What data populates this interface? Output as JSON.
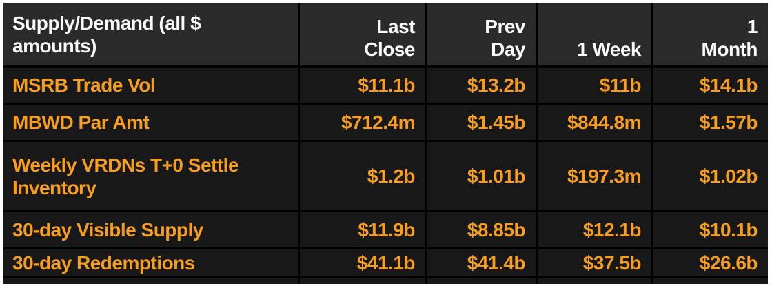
{
  "chart_data": {
    "type": "table",
    "title": "Supply/Demand (all $ amounts)",
    "header": {
      "label": "Supply/Demand (all $\namounts)",
      "columns": [
        "Last\nClose",
        "Prev\nDay",
        "1 Week",
        "1\nMonth"
      ]
    },
    "column_names": [
      "Last Close",
      "Prev Day",
      "1 Week",
      "1 Month"
    ],
    "rows": [
      {
        "label": "MSRB Trade Vol",
        "values": [
          "$11.1b",
          "$13.2b",
          "$11b",
          "$14.1b"
        ]
      },
      {
        "label": "MBWD Par Amt",
        "values": [
          "$712.4m",
          "$1.45b",
          "$844.8m",
          "$1.57b"
        ]
      },
      {
        "label": "Weekly VRDNs T+0 Settle\nInventory",
        "values": [
          "$1.2b",
          "$1.01b",
          "$197.3m",
          "$1.02b"
        ]
      },
      {
        "label": "30-day Visible Supply",
        "values": [
          "$11.9b",
          "$8.85b",
          "$12.1b",
          "$10.1b"
        ]
      },
      {
        "label": "30-day Redemptions",
        "values": [
          "$41.1b",
          "$41.4b",
          "$37.5b",
          "$26.6b"
        ]
      }
    ],
    "layout": {
      "grid": "on",
      "legend_position": "none"
    },
    "colors": {
      "header_text": "#fafafa",
      "data_text": "#f79e1f",
      "header_bg": "#2a2a2a",
      "cell_bg": "#181818",
      "gridline": "#000000",
      "frame": "#ffffff"
    }
  }
}
